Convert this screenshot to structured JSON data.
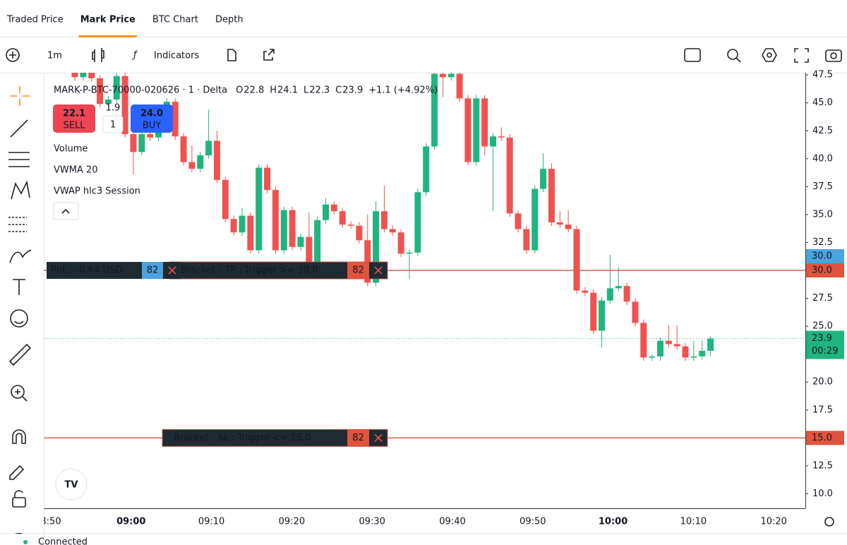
{
  "tabs": [
    "Traded Price",
    "Mark Price",
    "BTC Chart",
    "Depth"
  ],
  "active_tab": 1,
  "toolbar": {
    "interval": "1m",
    "indicators": "Indicators"
  },
  "legend": {
    "title": "MARK-P-BTC-70000-020626 · 1 · Delta",
    "ohlc": [
      [
        "O",
        "22.8"
      ],
      [
        "H",
        "24.1"
      ],
      [
        "L",
        "22.3"
      ],
      [
        "C",
        "23.9"
      ]
    ],
    "change": "+1.1 (+4.92%)"
  },
  "trade": {
    "sell_price": "22.1",
    "sell": "SELL",
    "spread": "1.9",
    "qty": "1",
    "buy_price": "24.0",
    "buy": "BUY"
  },
  "indicators": [
    "Volume",
    "VWMA 20",
    "VWAP hlc3 Session"
  ],
  "orders": {
    "pnl": "PnL : -0.64 USD",
    "pnl_qty": "82",
    "tp": "Bracket - TP ; Trigger >= 30.0",
    "tp_qty": "82",
    "sl": "Bracket - SL ; Trigger <= 15.0",
    "sl_qty": "82"
  },
  "chart": {
    "type": "candlestick",
    "up_color": "#1fb57e",
    "down_color": "#ef5350",
    "ylim": [
      8.7,
      47.7
    ],
    "yticks": [
      {
        "value": 10,
        "label": "10.0"
      },
      {
        "value": 12.5,
        "label": "12.5"
      },
      {
        "value": 15,
        "label": "15.0"
      },
      {
        "value": 17.5,
        "label": "17.5"
      },
      {
        "value": 20,
        "label": "20.0"
      },
      {
        "value": 22.5,
        "label": "22.5"
      },
      {
        "value": 25,
        "label": "25.0"
      },
      {
        "value": 27.5,
        "label": "27.5"
      },
      {
        "value": 30,
        "label": "30.0"
      },
      {
        "value": 32.5,
        "label": "32.5"
      },
      {
        "value": 35,
        "label": "35.0"
      },
      {
        "value": 37.5,
        "label": "37.5"
      },
      {
        "value": 40,
        "label": "40.0"
      },
      {
        "value": 42.5,
        "label": "42.5"
      },
      {
        "value": 45,
        "label": "45.0"
      },
      {
        "value": 47.5,
        "label": "47.5"
      }
    ],
    "xticks": [
      "8:50",
      "09:00",
      "09:10",
      "09:20",
      "09:30",
      "09:40",
      "09:50",
      "10:00",
      "10:10",
      "10:20"
    ],
    "candles": [
      [
        47.8,
        48.1,
        47.0,
        47.3
      ],
      [
        47.3,
        48.0,
        47.0,
        47.7
      ],
      [
        47.7,
        48.0,
        46.9,
        47.2
      ],
      [
        47.2,
        47.5,
        44.6,
        44.9
      ],
      [
        44.9,
        45.6,
        44.6,
        45.3
      ],
      [
        45.3,
        47.7,
        45.0,
        47.4
      ],
      [
        47.4,
        47.7,
        41.9,
        42.2
      ],
      [
        42.2,
        42.5,
        38.6,
        40.6
      ],
      [
        40.6,
        42.5,
        40.3,
        42.2
      ],
      [
        42.2,
        42.5,
        41.6,
        41.9
      ],
      [
        41.9,
        44.1,
        41.6,
        43.8
      ],
      [
        43.8,
        45.4,
        43.5,
        45.1
      ],
      [
        45.1,
        45.4,
        41.7,
        42.0
      ],
      [
        42.0,
        42.3,
        39.4,
        39.7
      ],
      [
        39.7,
        41.2,
        38.8,
        39.1
      ],
      [
        39.1,
        40.6,
        38.8,
        40.3
      ],
      [
        40.3,
        44.4,
        40.0,
        41.6
      ],
      [
        41.6,
        42.5,
        37.8,
        38.1
      ],
      [
        38.1,
        38.4,
        34.3,
        34.6
      ],
      [
        34.6,
        34.9,
        33.1,
        33.4
      ],
      [
        33.4,
        35.6,
        33.1,
        34.9
      ],
      [
        34.9,
        35.2,
        31.5,
        31.8
      ],
      [
        31.8,
        39.5,
        31.5,
        39.2
      ],
      [
        39.2,
        39.5,
        36.9,
        37.2
      ],
      [
        37.2,
        37.5,
        31.5,
        31.8
      ],
      [
        31.8,
        35.7,
        31.5,
        35.4
      ],
      [
        35.4,
        35.7,
        31.8,
        32.1
      ],
      [
        32.1,
        33.3,
        31.8,
        33.0
      ],
      [
        33.0,
        35.2,
        30.2,
        30.5
      ],
      [
        30.5,
        34.8,
        30.2,
        34.5
      ],
      [
        34.5,
        36.5,
        34.2,
        35.9
      ],
      [
        35.9,
        36.2,
        35.0,
        35.3
      ],
      [
        35.3,
        35.6,
        33.8,
        34.1
      ],
      [
        34.1,
        34.4,
        33.7,
        34.0
      ],
      [
        34.0,
        34.3,
        32.4,
        32.7
      ],
      [
        32.7,
        35.0,
        28.6,
        28.9
      ],
      [
        28.9,
        36.2,
        28.6,
        35.3
      ],
      [
        35.3,
        37.6,
        33.4,
        33.7
      ],
      [
        33.7,
        34.0,
        33.1,
        33.4
      ],
      [
        33.4,
        33.7,
        31.2,
        31.5
      ],
      [
        31.5,
        31.9,
        29.2,
        31.6
      ],
      [
        31.6,
        37.3,
        31.3,
        37.0
      ],
      [
        37.0,
        41.4,
        36.7,
        41.1
      ],
      [
        41.1,
        47.9,
        40.8,
        47.6
      ],
      [
        47.6,
        47.9,
        45.5,
        47.3
      ],
      [
        47.3,
        47.9,
        47.0,
        47.6
      ],
      [
        47.6,
        47.9,
        45.1,
        45.4
      ],
      [
        45.4,
        45.7,
        39.4,
        39.7
      ],
      [
        39.7,
        45.7,
        39.4,
        45.4
      ],
      [
        45.4,
        45.7,
        40.3,
        41.1
      ],
      [
        41.1,
        42.3,
        35.3,
        42.0
      ],
      [
        42.0,
        42.8,
        41.6,
        41.9
      ],
      [
        41.9,
        42.2,
        34.8,
        35.1
      ],
      [
        35.1,
        35.4,
        33.4,
        33.7
      ],
      [
        33.7,
        34.0,
        31.5,
        31.8
      ],
      [
        31.8,
        37.6,
        31.5,
        37.3
      ],
      [
        37.3,
        40.5,
        37.0,
        39.1
      ],
      [
        39.1,
        39.6,
        34.0,
        34.3
      ],
      [
        34.3,
        35.3,
        33.8,
        34.1
      ],
      [
        34.1,
        35.4,
        33.4,
        33.7
      ],
      [
        33.7,
        34.0,
        27.9,
        28.2
      ],
      [
        28.2,
        28.5,
        27.7,
        28.0
      ],
      [
        28.0,
        28.3,
        24.3,
        24.6
      ],
      [
        24.6,
        27.6,
        23.1,
        27.3
      ],
      [
        27.3,
        31.4,
        27.0,
        28.4
      ],
      [
        28.4,
        30.3,
        28.1,
        28.6
      ],
      [
        28.6,
        28.9,
        26.9,
        27.2
      ],
      [
        27.2,
        27.5,
        25.0,
        25.3
      ],
      [
        25.3,
        25.6,
        21.9,
        22.2
      ],
      [
        22.2,
        22.5,
        21.9,
        22.3
      ],
      [
        22.3,
        24.0,
        21.9,
        23.7
      ],
      [
        23.7,
        25.1,
        23.1,
        23.4
      ],
      [
        23.4,
        25.1,
        22.9,
        23.2
      ],
      [
        23.2,
        23.5,
        21.9,
        22.2
      ],
      [
        22.2,
        23.7,
        21.9,
        22.3
      ],
      [
        22.3,
        23.7,
        22.0,
        22.8
      ],
      [
        22.8,
        24.1,
        22.3,
        23.9
      ]
    ],
    "price_lines": [
      {
        "value": 30,
        "label": "30.0",
        "color": "#4aa3df"
      },
      {
        "value": 30,
        "label": "30.0",
        "color": "#e0533c"
      },
      {
        "value": 15,
        "label": "15.0",
        "color": "#e0533c"
      }
    ],
    "last_price": {
      "value": 23.9,
      "label": "23.9",
      "countdown": "00:29"
    }
  },
  "status": "Connected"
}
